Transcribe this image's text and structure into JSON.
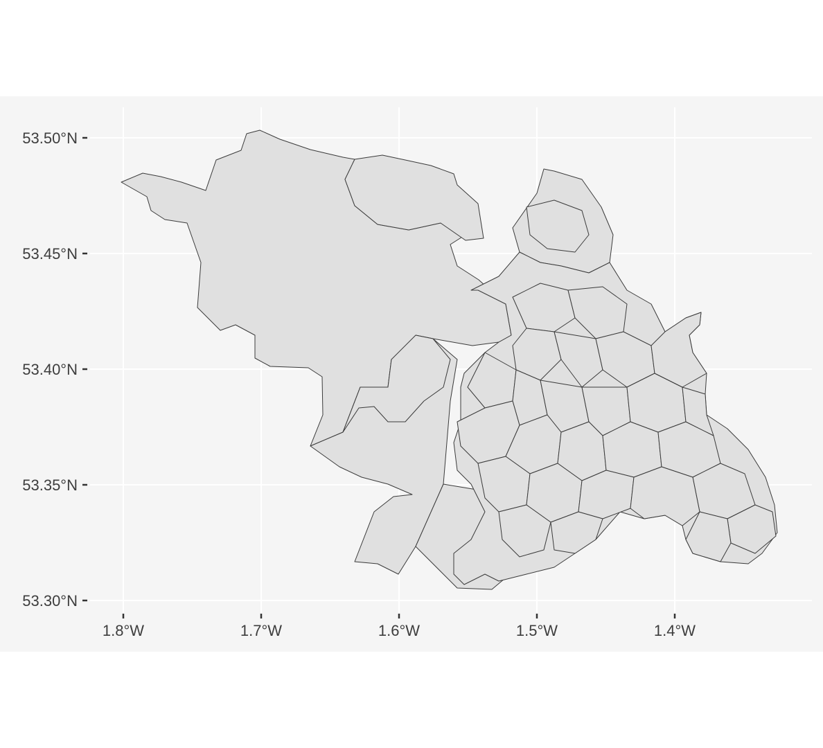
{
  "map": {
    "panel_background": "#f5f5f5",
    "grid_color": "#ffffff",
    "region_fill": "#e0e0e0",
    "region_stroke": "#3a3a3a",
    "axis_text_color": "#3d3d3d",
    "lon_range": [
      -1.8,
      -1.32
    ],
    "lat_range": [
      53.3,
      53.5
    ],
    "x_ticks": [
      {
        "value": -1.8,
        "label": "1.8°W"
      },
      {
        "value": -1.7,
        "label": "1.7°W"
      },
      {
        "value": -1.6,
        "label": "1.6°W"
      },
      {
        "value": -1.5,
        "label": "1.5°W"
      },
      {
        "value": -1.4,
        "label": "1.4°W"
      }
    ],
    "y_ticks": [
      {
        "value": 53.5,
        "label": "53.50°N"
      },
      {
        "value": 53.45,
        "label": "53.45°N"
      },
      {
        "value": 53.4,
        "label": "53.40°N"
      },
      {
        "value": 53.35,
        "label": "53.35°N"
      },
      {
        "value": 53.3,
        "label": "53.30°N"
      }
    ],
    "grid": true
  }
}
